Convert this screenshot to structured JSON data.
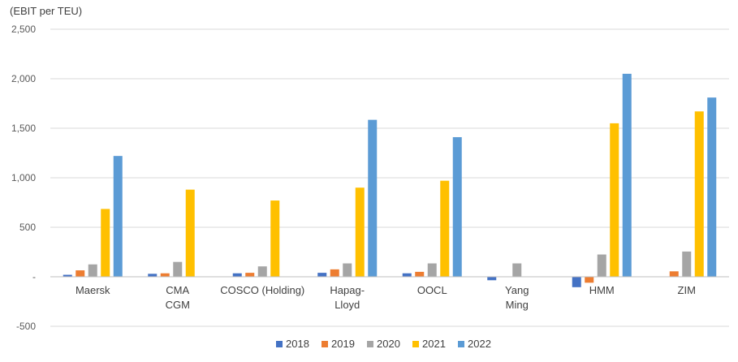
{
  "chart_data": {
    "type": "bar",
    "ylabel": "(EBIT per TEU)",
    "ylim": [
      -500,
      2500
    ],
    "ytick_values": [
      -500,
      0,
      500,
      1000,
      1500,
      2000,
      2500
    ],
    "ytick_labels": [
      "-500",
      "-",
      "500",
      "1,000",
      "1,500",
      "2,000",
      "2,500"
    ],
    "gridlines": true,
    "legend_position": "bottom",
    "categories": [
      [
        "Maersk"
      ],
      [
        "CMA",
        "CGM"
      ],
      [
        "COSCO (Holding)"
      ],
      [
        "Hapag-",
        "Lloyd"
      ],
      [
        "OOCL"
      ],
      [
        "Yang",
        "Ming"
      ],
      [
        "HMM"
      ],
      [
        "ZIM"
      ]
    ],
    "series": [
      {
        "name": "2018",
        "color": "#4472C4",
        "values": [
          20,
          30,
          35,
          40,
          35,
          -35,
          -105,
          0
        ]
      },
      {
        "name": "2019",
        "color": "#ED7D31",
        "values": [
          65,
          35,
          40,
          75,
          50,
          0,
          -60,
          55
        ]
      },
      {
        "name": "2020",
        "color": "#A5A5A5",
        "values": [
          125,
          150,
          105,
          135,
          135,
          135,
          225,
          255
        ]
      },
      {
        "name": "2021",
        "color": "#FFC000",
        "values": [
          685,
          880,
          770,
          900,
          970,
          0,
          1550,
          1670
        ]
      },
      {
        "name": "2022",
        "color": "#5B9BD5",
        "values": [
          1220,
          0,
          0,
          1585,
          1410,
          0,
          2050,
          1810
        ]
      }
    ]
  }
}
